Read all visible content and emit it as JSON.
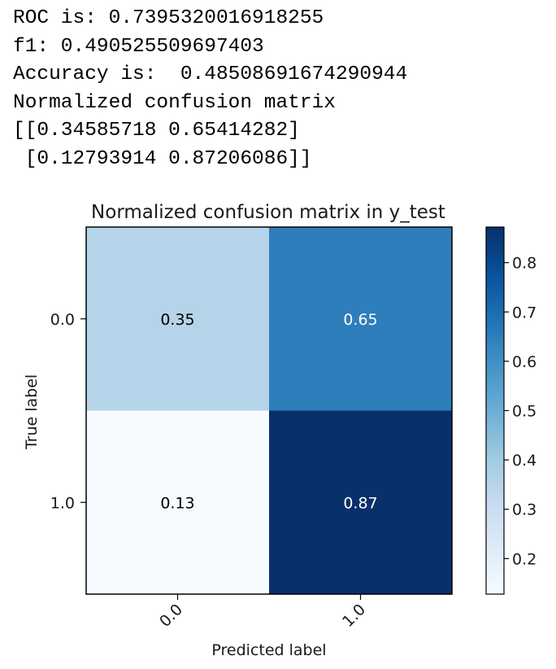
{
  "output_lines": [
    "ROC is: 0.7395320016918255",
    "f1: 0.490525509697403",
    "Accuracy is:  0.48508691674290944",
    "Normalized confusion matrix",
    "[[0.34585718 0.65414282]",
    " [0.12793914 0.87206086]]"
  ],
  "chart_data": {
    "type": "heatmap",
    "title": "Normalized confusion matrix in y_test",
    "xlabel": "Predicted label",
    "ylabel": "True label",
    "x_categories": [
      "0.0",
      "1.0"
    ],
    "y_categories": [
      "0.0",
      "1.0"
    ],
    "values": [
      [
        0.34585718,
        0.65414282
      ],
      [
        0.12793914,
        0.87206086
      ]
    ],
    "cell_labels": [
      [
        "0.35",
        "0.65"
      ],
      [
        "0.13",
        "0.87"
      ]
    ],
    "colormap": "Blues",
    "colorbar": {
      "min": 0.12793914,
      "max": 0.87206086,
      "ticks": [
        "0.2",
        "0.3",
        "0.4",
        "0.5",
        "0.6",
        "0.7",
        "0.8"
      ]
    },
    "colors": {
      "cell_0_0": "#b5d4e9",
      "cell_0_1": "#2e7ebc",
      "cell_1_0": "#f7fbff",
      "cell_1_1": "#08306b",
      "dark_text": "#000000",
      "light_text": "#ffffff"
    }
  }
}
